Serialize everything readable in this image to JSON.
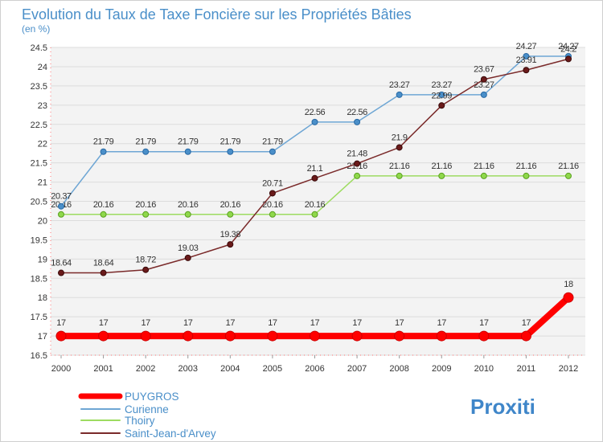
{
  "chart_data": {
    "type": "line",
    "title": "Evolution du Taux de Taxe Foncière sur les Propriétés Bâties",
    "unit_label": "(en %)",
    "ylim": [
      16.5,
      24.5
    ],
    "y_ticks": [
      "16.5",
      "17",
      "17.5",
      "18",
      "18.5",
      "19",
      "19.5",
      "20",
      "20.5",
      "21",
      "21.5",
      "22",
      "22.5",
      "23",
      "23.5",
      "24",
      "24.5"
    ],
    "categories": [
      "2000",
      "2001",
      "2002",
      "2003",
      "2004",
      "2005",
      "2006",
      "2007",
      "2008",
      "2009",
      "2010",
      "2011",
      "2012"
    ],
    "grid": "horizontal",
    "legend_position": "bottom-left",
    "series": [
      {
        "name": "PUYGROS",
        "color": "#ff0000",
        "values": [
          17,
          17,
          17,
          17,
          17,
          17,
          17,
          17,
          17,
          17,
          17,
          17,
          18
        ]
      },
      {
        "name": "Curienne",
        "color": "#6ea6d4",
        "values": [
          20.37,
          21.79,
          21.79,
          21.79,
          21.79,
          21.79,
          22.56,
          22.56,
          23.27,
          23.27,
          23.27,
          24.27,
          24.27
        ]
      },
      {
        "name": "Thoiry",
        "color": "#9ddc60",
        "values": [
          20.16,
          20.16,
          20.16,
          20.16,
          20.16,
          20.16,
          20.16,
          21.16,
          21.16,
          21.16,
          21.16,
          21.16,
          21.16
        ]
      },
      {
        "name": "Saint-Jean-d'Arvey",
        "color": "#7a2a2a",
        "values": [
          18.64,
          18.64,
          18.72,
          19.03,
          19.38,
          20.71,
          21.1,
          21.48,
          21.9,
          22.99,
          23.67,
          23.91,
          24.2
        ]
      }
    ],
    "data_labels": [
      [
        "17",
        "17",
        "17",
        "17",
        "17",
        "17",
        "17",
        "17",
        "17",
        "17",
        "17",
        "17",
        "18"
      ],
      [
        "20.37",
        "21.79",
        "21.79",
        "21.79",
        "21.79",
        "21.79",
        "22.56",
        "22.56",
        "23.27",
        "23.27",
        "23.27",
        "24.27",
        "24.27"
      ],
      [
        "20.16",
        "20.16",
        "20.16",
        "20.16",
        "20.16",
        "20.16",
        "20.16",
        "21.16",
        "21.16",
        "21.16",
        "21.16",
        "21.16",
        "21.16"
      ],
      [
        "18.64",
        "18.64",
        "18.72",
        "19.03",
        "19.38",
        "20.71",
        "21.1",
        "21.48",
        "21.9",
        "22.99",
        "23.67",
        "23.91",
        "24.2"
      ]
    ]
  },
  "brand": {
    "text": "Proxiti"
  }
}
